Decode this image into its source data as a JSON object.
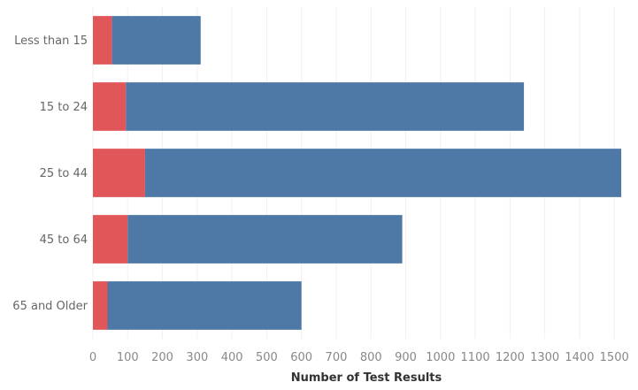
{
  "chart_data": {
    "type": "bar",
    "orientation": "horizontal",
    "stacked": true,
    "categories": [
      "Less than 15",
      "15 to 24",
      "25 to 44",
      "45 to 64",
      "65 and Older"
    ],
    "series": [
      {
        "values": [
          55,
          95,
          150,
          100,
          42
        ]
      },
      {
        "values": [
          255,
          1145,
          1370,
          790,
          558
        ]
      }
    ],
    "colors": [
      "#e15759",
      "#4e79a7"
    ],
    "xlabel": "Number of Test Results",
    "ylabel": "",
    "xlim": [
      0,
      1530
    ],
    "xticks": [
      0,
      100,
      200,
      300,
      400,
      500,
      600,
      700,
      800,
      900,
      1000,
      1100,
      1200,
      1300,
      1400,
      1500
    ],
    "grid": true,
    "legend": "none"
  }
}
